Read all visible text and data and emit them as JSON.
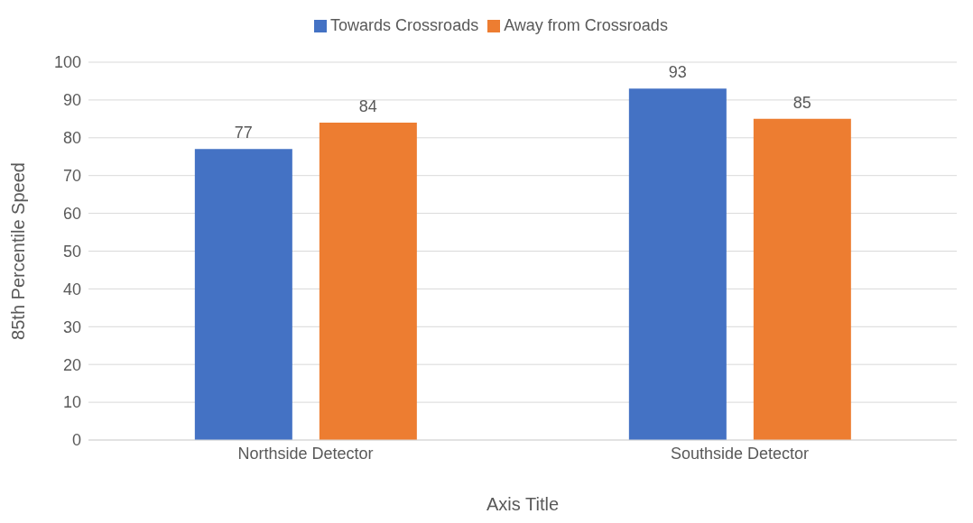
{
  "chart_data": {
    "type": "bar",
    "xlabel": "Axis Title",
    "ylabel": "85th Percentile Speed",
    "categories": [
      "Northside Detector",
      "Southside Detector"
    ],
    "series": [
      {
        "name": "Towards Crossroads",
        "color": "#4472c4",
        "values": [
          77,
          93
        ]
      },
      {
        "name": "Away from Crossroads",
        "color": "#ed7d31",
        "values": [
          84,
          85
        ]
      }
    ],
    "ylim": [
      0,
      100
    ],
    "yticks": [
      0,
      10,
      20,
      30,
      40,
      50,
      60,
      70,
      80,
      90,
      100
    ],
    "grid": "y",
    "legend": "top",
    "data_labels": true
  }
}
